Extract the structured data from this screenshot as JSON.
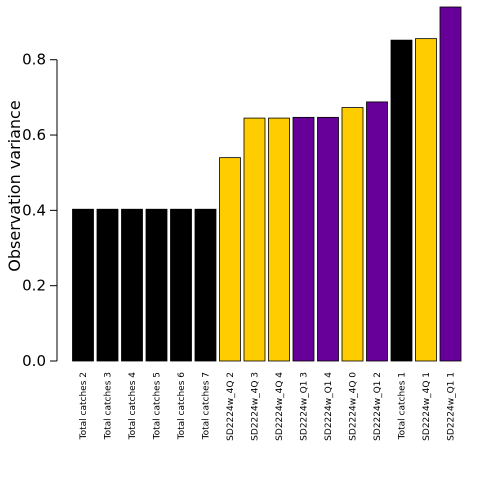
{
  "chart_data": {
    "type": "bar",
    "title": "",
    "xlabel": "",
    "ylabel": "Observation variance",
    "ylim": [
      0,
      0.94
    ],
    "yticks": [
      "0.0",
      "0.2",
      "0.4",
      "0.6",
      "0.8"
    ],
    "ytick_values": [
      0,
      0.2,
      0.4,
      0.6,
      0.8
    ],
    "grid": false,
    "legend": "none",
    "categories": [
      "Total catches 2",
      "Total catches 3",
      "Total catches 4",
      "Total catches 5",
      "Total catches 6",
      "Total catches 7",
      "SD2224w_4Q 2",
      "SD2224w_4Q 3",
      "SD2224w_4Q 4",
      "SD2224w_Q1 3",
      "SD2224w_Q1 4",
      "SD2224w_4Q 0",
      "SD2224w_Q1 2",
      "Total catches 1",
      "SD2224w_4Q 1",
      "SD2224w_Q1 1"
    ],
    "values": [
      0.403,
      0.403,
      0.403,
      0.403,
      0.403,
      0.403,
      0.54,
      0.645,
      0.645,
      0.647,
      0.647,
      0.673,
      0.688,
      0.852,
      0.856,
      0.94
    ],
    "bar_colors": [
      "#000000",
      "#000000",
      "#000000",
      "#000000",
      "#000000",
      "#000000",
      "#FFCC00",
      "#FFCC00",
      "#FFCC00",
      "#660099",
      "#660099",
      "#FFCC00",
      "#660099",
      "#000000",
      "#FFCC00",
      "#660099"
    ]
  }
}
